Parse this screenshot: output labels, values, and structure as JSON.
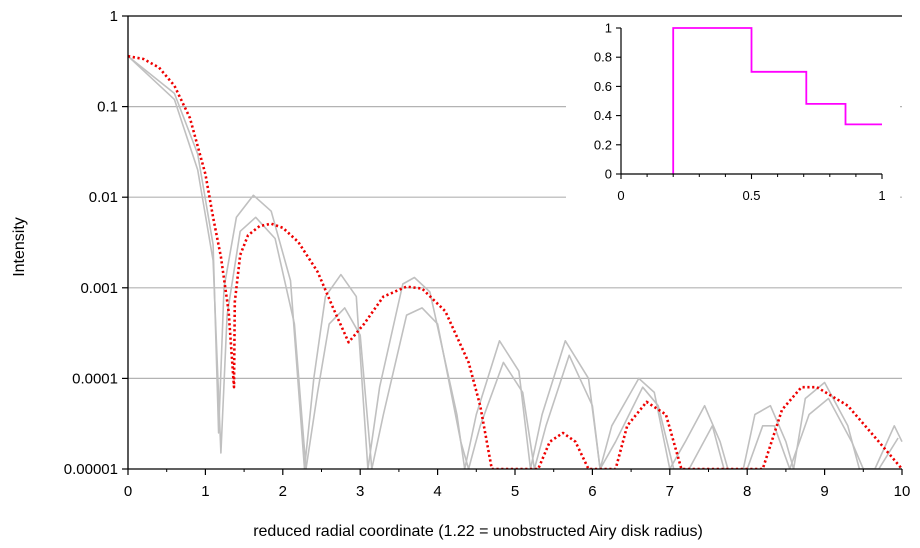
{
  "chart_data": [
    {
      "type": "line",
      "title": "",
      "xlabel": "reduced radial coordinate (1.22 = unobstructed Airy disk radius)",
      "ylabel": "Intensity",
      "x_range": [
        0,
        10
      ],
      "y_range": [
        1e-05,
        1
      ],
      "y_scale": "log",
      "grid": "horizontal at decades",
      "x_ticks": [
        0,
        1,
        2,
        3,
        4,
        5,
        6,
        7,
        8,
        9,
        10
      ],
      "x_tick_labels": [
        "0",
        "1",
        "2",
        "3",
        "4",
        "5",
        "6",
        "7",
        "8",
        "9",
        "10"
      ],
      "y_ticks": [
        1,
        0.1,
        0.01,
        0.001,
        0.0001,
        1e-05
      ],
      "y_tick_labels": [
        "1",
        "0.1",
        "0.01",
        "0.001",
        "0.0001",
        "0.00001"
      ],
      "series": [
        {
          "style": "red dotted (diamond markers)",
          "color": "#ee0000",
          "points": [
            [
              0,
              0.36
            ],
            [
              0.2,
              0.335
            ],
            [
              0.4,
              0.27
            ],
            [
              0.6,
              0.17
            ],
            [
              0.8,
              0.075
            ],
            [
              1.0,
              0.018
            ],
            [
              1.1,
              0.006
            ],
            [
              1.2,
              0.0022
            ],
            [
              1.3,
              0.00055
            ],
            [
              1.37,
              8e-05
            ],
            [
              1.38,
              0.0007
            ],
            [
              1.45,
              0.0023
            ],
            [
              1.55,
              0.0038
            ],
            [
              1.7,
              0.0048
            ],
            [
              1.85,
              0.0051
            ],
            [
              2.0,
              0.0046
            ],
            [
              2.2,
              0.0032
            ],
            [
              2.45,
              0.0015
            ],
            [
              2.65,
              0.0006
            ],
            [
              2.85,
              0.00025
            ],
            [
              3.05,
              0.0004
            ],
            [
              3.3,
              0.0008
            ],
            [
              3.6,
              0.00103
            ],
            [
              3.8,
              0.00098
            ],
            [
              4.1,
              0.00055
            ],
            [
              4.4,
              0.00015
            ],
            [
              4.55,
              5e-05
            ],
            [
              4.7,
              1e-05
            ],
            [
              5.3,
              1e-05
            ],
            [
              5.45,
              2e-05
            ],
            [
              5.62,
              2.5e-05
            ],
            [
              5.78,
              2e-05
            ],
            [
              5.95,
              1e-05
            ],
            [
              6.3,
              1e-05
            ],
            [
              6.45,
              3e-05
            ],
            [
              6.7,
              5.5e-05
            ],
            [
              6.95,
              4e-05
            ],
            [
              7.15,
              1e-05
            ],
            [
              8.2,
              1e-05
            ],
            [
              8.45,
              4.5e-05
            ],
            [
              8.7,
              8e-05
            ],
            [
              8.9,
              8e-05
            ],
            [
              9.3,
              5e-05
            ],
            [
              9.7,
              2e-05
            ],
            [
              10.0,
              1e-05
            ]
          ]
        },
        {
          "style": "gray reference curve",
          "color": "#c0c0c0",
          "points": [
            [
              0,
              0.36
            ],
            [
              0.6,
              0.14
            ],
            [
              0.9,
              0.03
            ],
            [
              1.1,
              0.003
            ],
            [
              1.17,
              2.5e-05
            ],
            [
              1.24,
              0.001
            ],
            [
              1.4,
              0.006
            ],
            [
              1.62,
              0.0105
            ],
            [
              1.85,
              0.007
            ],
            [
              2.1,
              0.0012
            ],
            [
              2.28,
              1e-05
            ],
            [
              2.4,
              0.0001
            ],
            [
              2.55,
              0.0008
            ],
            [
              2.75,
              0.0014
            ],
            [
              2.95,
              0.0008
            ],
            [
              3.1,
              1e-05
            ],
            [
              3.25,
              8e-05
            ],
            [
              3.55,
              0.0011
            ],
            [
              3.7,
              0.0013
            ],
            [
              3.9,
              0.0009
            ],
            [
              4.25,
              4e-05
            ],
            [
              4.35,
              1e-05
            ],
            [
              4.5,
              4e-05
            ],
            [
              4.8,
              0.00026
            ],
            [
              5.05,
              0.00012
            ],
            [
              5.2,
              1e-05
            ],
            [
              5.35,
              4e-05
            ],
            [
              5.65,
              0.00026
            ],
            [
              5.95,
              0.0001
            ],
            [
              6.1,
              1e-05
            ],
            [
              6.25,
              3e-05
            ],
            [
              6.6,
              0.0001
            ],
            [
              6.8,
              7e-05
            ],
            [
              7.0,
              1e-05
            ],
            [
              7.2,
              2e-05
            ],
            [
              7.45,
              5e-05
            ],
            [
              7.65,
              2e-05
            ],
            [
              7.75,
              1e-05
            ],
            [
              7.95,
              1e-05
            ],
            [
              8.1,
              4e-05
            ],
            [
              8.3,
              5e-05
            ],
            [
              8.5,
              2e-05
            ],
            [
              8.6,
              1e-05
            ],
            [
              8.75,
              6e-05
            ],
            [
              9.0,
              9e-05
            ],
            [
              9.3,
              3e-05
            ],
            [
              9.45,
              1e-05
            ],
            [
              9.65,
              1e-05
            ],
            [
              9.9,
              3e-05
            ],
            [
              10.0,
              2e-05
            ]
          ]
        },
        {
          "style": "gray reference curve",
          "color": "#c0c0c0",
          "points": [
            [
              0,
              0.36
            ],
            [
              0.6,
              0.12
            ],
            [
              0.9,
              0.02
            ],
            [
              1.1,
              0.002
            ],
            [
              1.2,
              1.5e-05
            ],
            [
              1.28,
              0.0005
            ],
            [
              1.45,
              0.0042
            ],
            [
              1.65,
              0.006
            ],
            [
              1.9,
              0.0035
            ],
            [
              2.15,
              0.0004
            ],
            [
              2.3,
              1e-05
            ],
            [
              2.45,
              7e-05
            ],
            [
              2.6,
              0.0004
            ],
            [
              2.8,
              0.0006
            ],
            [
              3.0,
              0.0003
            ],
            [
              3.15,
              1e-05
            ],
            [
              3.3,
              4e-05
            ],
            [
              3.6,
              0.0005
            ],
            [
              3.8,
              0.0006
            ],
            [
              4.0,
              0.0004
            ],
            [
              4.3,
              2e-05
            ],
            [
              4.4,
              1e-05
            ],
            [
              4.55,
              3e-05
            ],
            [
              4.85,
              0.00015
            ],
            [
              5.1,
              7e-05
            ],
            [
              5.25,
              1e-05
            ],
            [
              5.4,
              3e-05
            ],
            [
              5.7,
              0.00018
            ],
            [
              6.0,
              5e-05
            ],
            [
              6.1,
              1e-05
            ],
            [
              6.3,
              2e-05
            ],
            [
              6.65,
              8e-05
            ],
            [
              6.85,
              5e-05
            ],
            [
              7.05,
              1e-05
            ],
            [
              7.25,
              1e-05
            ],
            [
              7.55,
              3e-05
            ],
            [
              7.7,
              1e-05
            ],
            [
              8.0,
              1e-05
            ],
            [
              8.2,
              3e-05
            ],
            [
              8.35,
              3e-05
            ],
            [
              8.55,
              1e-05
            ],
            [
              8.8,
              4e-05
            ],
            [
              9.05,
              6e-05
            ],
            [
              9.35,
              2e-05
            ],
            [
              9.5,
              1e-05
            ],
            [
              9.7,
              1e-05
            ],
            [
              9.95,
              2.2e-05
            ]
          ]
        }
      ]
    },
    {
      "type": "line",
      "title": "",
      "xlabel": "",
      "ylabel": "",
      "x_range": [
        0,
        1
      ],
      "y_range": [
        0,
        1
      ],
      "x_ticks": [
        0,
        0.5,
        1
      ],
      "x_tick_labels": [
        "0",
        "0.5",
        "1"
      ],
      "y_ticks": [
        0,
        0.2,
        0.4,
        0.6,
        0.8,
        1
      ],
      "y_tick_labels": [
        "0",
        "0.2",
        "0.4",
        "0.6",
        "0.8",
        "1"
      ],
      "series": [
        {
          "style": "magenta step line",
          "color": "#ff00ff",
          "points": [
            [
              0.2,
              0
            ],
            [
              0.2,
              1
            ],
            [
              0.5,
              1
            ],
            [
              0.5,
              0.7
            ],
            [
              0.71,
              0.7
            ],
            [
              0.71,
              0.48
            ],
            [
              0.86,
              0.48
            ],
            [
              0.86,
              0.34
            ],
            [
              1.0,
              0.34
            ]
          ]
        }
      ]
    }
  ]
}
